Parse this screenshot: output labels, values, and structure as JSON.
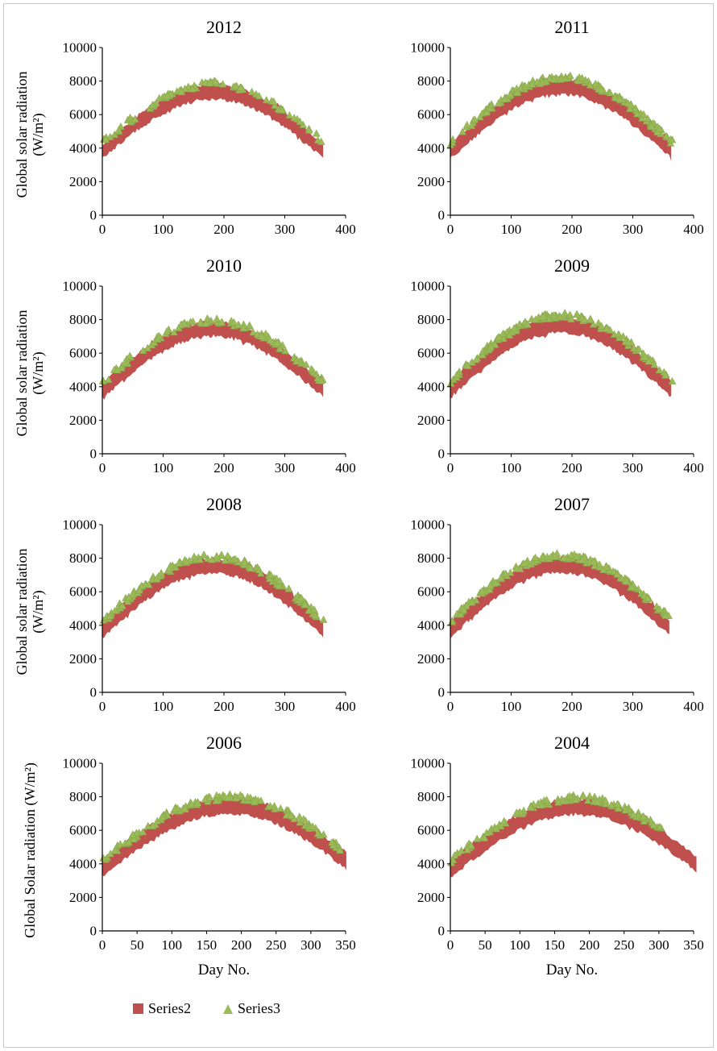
{
  "figure": {
    "background": "#ffffff",
    "border_color": "#c9c9c9"
  },
  "legend": {
    "position": "bottom-left",
    "items": [
      {
        "label": "Series2",
        "marker": "square",
        "color": "#c0504d"
      },
      {
        "label": "Series3",
        "marker": "triangle",
        "color": "#9bbb59"
      }
    ]
  },
  "chart_data": [
    {
      "type": "scatter",
      "title": "2012",
      "ylabel_lines": [
        "Global solar radiation",
        "(W/m²)"
      ],
      "xlabel": "",
      "xlim": [
        0,
        400
      ],
      "xticks": [
        0,
        100,
        200,
        300,
        400
      ],
      "ylim": [
        0,
        10000
      ],
      "yticks": [
        0,
        2000,
        4000,
        6000,
        8000,
        10000
      ],
      "series": [
        {
          "name": "Series2",
          "marker": "square",
          "color": "#c0504d",
          "band": {
            "base": 3800,
            "peak": 7350,
            "halfwidth": 430,
            "x_start": 0,
            "x_end": 365
          },
          "sampled_center": {
            "x": [
              0,
              90,
              180,
              270,
              365
            ],
            "y": [
              3800,
              6290,
              7350,
              6390,
              3800
            ]
          }
        },
        {
          "name": "Series3",
          "marker": "triangle",
          "color": "#9bbb59",
          "count": 85,
          "x_start": 0,
          "x_end": 363
        }
      ]
    },
    {
      "type": "scatter",
      "title": "2011",
      "ylabel_lines": [],
      "xlabel": "",
      "xlim": [
        0,
        400
      ],
      "xticks": [
        0,
        100,
        200,
        300,
        400
      ],
      "ylim": [
        0,
        10000
      ],
      "yticks": [
        0,
        2000,
        4000,
        6000,
        8000,
        10000
      ],
      "series": [
        {
          "name": "Series2",
          "marker": "square",
          "color": "#c0504d",
          "band": {
            "base": 3800,
            "peak": 7650,
            "halfwidth": 450,
            "x_start": 0,
            "x_end": 365
          },
          "sampled_center": {
            "x": [
              0,
              90,
              180,
              270,
              365
            ],
            "y": [
              3800,
              6500,
              7650,
              6610,
              3800
            ]
          }
        },
        {
          "name": "Series3",
          "marker": "triangle",
          "color": "#9bbb59",
          "count": 150,
          "x_start": 0,
          "x_end": 365
        }
      ]
    },
    {
      "type": "scatter",
      "title": "2010",
      "ylabel_lines": [
        "Global solar radiation",
        "(W/m²)"
      ],
      "xlabel": "",
      "xlim": [
        0,
        400
      ],
      "xticks": [
        0,
        100,
        200,
        300,
        400
      ],
      "ylim": [
        0,
        10000
      ],
      "yticks": [
        0,
        2000,
        4000,
        6000,
        8000,
        10000
      ],
      "series": [
        {
          "name": "Series2",
          "marker": "square",
          "color": "#c0504d",
          "band": {
            "base": 3750,
            "peak": 7450,
            "halfwidth": 430,
            "x_start": 0,
            "x_end": 365
          },
          "sampled_center": {
            "x": [
              0,
              90,
              180,
              270,
              365
            ],
            "y": [
              3750,
              6340,
              7450,
              6450,
              3750
            ]
          }
        },
        {
          "name": "Series3",
          "marker": "triangle",
          "color": "#9bbb59",
          "count": 110,
          "x_start": 0,
          "x_end": 365
        }
      ]
    },
    {
      "type": "scatter",
      "title": "2009",
      "ylabel_lines": [],
      "xlabel": "",
      "xlim": [
        0,
        400
      ],
      "xticks": [
        0,
        100,
        200,
        300,
        400
      ],
      "ylim": [
        0,
        10000
      ],
      "yticks": [
        0,
        2000,
        4000,
        6000,
        8000,
        10000
      ],
      "series": [
        {
          "name": "Series2",
          "marker": "square",
          "color": "#c0504d",
          "band": {
            "base": 3800,
            "peak": 7700,
            "halfwidth": 470,
            "x_start": 0,
            "x_end": 365
          },
          "sampled_center": {
            "x": [
              0,
              90,
              180,
              270,
              365
            ],
            "y": [
              3800,
              6530,
              7700,
              6640,
              3800
            ]
          }
        },
        {
          "name": "Series3",
          "marker": "triangle",
          "color": "#9bbb59",
          "count": 150,
          "x_start": 0,
          "x_end": 365
        }
      ]
    },
    {
      "type": "scatter",
      "title": "2008",
      "ylabel_lines": [
        "Global solar radiation",
        "(W/m²)"
      ],
      "xlabel": "",
      "xlim": [
        0,
        400
      ],
      "xticks": [
        0,
        100,
        200,
        300,
        400
      ],
      "ylim": [
        0,
        10000
      ],
      "yticks": [
        0,
        2000,
        4000,
        6000,
        8000,
        10000
      ],
      "series": [
        {
          "name": "Series2",
          "marker": "square",
          "color": "#c0504d",
          "band": {
            "base": 3700,
            "peak": 7550,
            "halfwidth": 440,
            "x_start": 0,
            "x_end": 365
          },
          "sampled_center": {
            "x": [
              0,
              90,
              180,
              270,
              365
            ],
            "y": [
              3700,
              6400,
              7550,
              6510,
              3700
            ]
          }
        },
        {
          "name": "Series3",
          "marker": "triangle",
          "color": "#9bbb59",
          "count": 140,
          "x_start": 0,
          "x_end": 365
        }
      ]
    },
    {
      "type": "scatter",
      "title": "2007",
      "ylabel_lines": [],
      "xlabel": "",
      "xlim": [
        0,
        400
      ],
      "xticks": [
        0,
        100,
        200,
        300,
        400
      ],
      "ylim": [
        0,
        10000
      ],
      "yticks": [
        0,
        2000,
        4000,
        6000,
        8000,
        10000
      ],
      "series": [
        {
          "name": "Series2",
          "marker": "square",
          "color": "#c0504d",
          "band": {
            "base": 3750,
            "peak": 7600,
            "halfwidth": 450,
            "x_start": 0,
            "x_end": 362
          },
          "sampled_center": {
            "x": [
              0,
              90,
              180,
              270,
              362
            ],
            "y": [
              3750,
              6450,
              7600,
              6560,
              3750
            ]
          }
        },
        {
          "name": "Series3",
          "marker": "triangle",
          "color": "#9bbb59",
          "count": 150,
          "x_start": 0,
          "x_end": 360
        }
      ]
    },
    {
      "type": "scatter",
      "title": "2006",
      "ylabel_lines": [
        "Global Solar radiation (W/m²)"
      ],
      "xlabel": "Day No.",
      "xlim": [
        0,
        350
      ],
      "xticks": [
        0,
        50,
        100,
        150,
        200,
        250,
        300,
        350
      ],
      "ylim": [
        0,
        10000
      ],
      "yticks": [
        0,
        2000,
        4000,
        6000,
        8000,
        10000
      ],
      "series": [
        {
          "name": "Series2",
          "marker": "square",
          "color": "#c0504d",
          "band": {
            "base": 3700,
            "peak": 7450,
            "halfwidth": 450,
            "x_start": 0,
            "x_end": 352
          },
          "sampled_center": {
            "x": [
              0,
              90,
              180,
              270,
              350
            ],
            "y": [
              3700,
              6330,
              7450,
              6440,
              4000
            ]
          }
        },
        {
          "name": "Series3",
          "marker": "triangle",
          "color": "#9bbb59",
          "count": 140,
          "x_start": 0,
          "x_end": 350
        }
      ]
    },
    {
      "type": "scatter",
      "title": "2004",
      "ylabel_lines": [],
      "xlabel": "Day No.",
      "xlim": [
        0,
        350
      ],
      "xticks": [
        0,
        50,
        100,
        150,
        200,
        250,
        300,
        350
      ],
      "ylim": [
        0,
        10000
      ],
      "yticks": [
        0,
        2000,
        4000,
        6000,
        8000,
        10000
      ],
      "series": [
        {
          "name": "Series2",
          "marker": "square",
          "color": "#c0504d",
          "band": {
            "base": 3650,
            "peak": 7400,
            "halfwidth": 450,
            "x_start": 0,
            "x_end": 356
          },
          "sampled_center": {
            "x": [
              0,
              90,
              180,
              270,
              356
            ],
            "y": [
              3650,
              6280,
              7400,
              6390,
              3950
            ]
          }
        },
        {
          "name": "Series3",
          "marker": "triangle",
          "color": "#9bbb59",
          "count": 120,
          "x_start": 0,
          "x_end": 305
        }
      ]
    }
  ]
}
